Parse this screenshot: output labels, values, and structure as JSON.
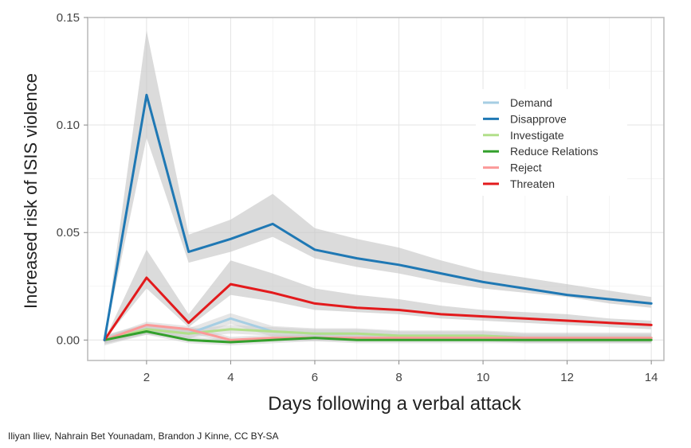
{
  "chart_data": {
    "type": "line",
    "title": "",
    "xlabel": "Days following a verbal attack",
    "ylabel": "Increased risk of ISIS violence",
    "xlim": [
      0.6,
      14.3
    ],
    "ylim": [
      -0.0095,
      0.15
    ],
    "x_ticks": [
      "2",
      "4",
      "6",
      "8",
      "10",
      "12",
      "14"
    ],
    "y_ticks": [
      "0.00",
      "0.05",
      "0.10",
      "0.15"
    ],
    "grid": true,
    "legend_position": "top-right",
    "x": [
      1,
      2,
      3,
      4,
      5,
      6,
      7,
      8,
      9,
      10,
      11,
      12,
      13,
      14
    ],
    "series": [
      {
        "name": "Demand",
        "color": "#a6cee3",
        "values": [
          0,
          0.005,
          0.003,
          0.01,
          0.004,
          0.003,
          0.003,
          0.002,
          0.002,
          0.002,
          0.001,
          0.001,
          0.001,
          0.001
        ],
        "band": 0.0025
      },
      {
        "name": "Disapprove",
        "color": "#1f78b4",
        "values": [
          0,
          0.114,
          0.041,
          0.047,
          0.054,
          0.042,
          0.038,
          0.035,
          0.031,
          0.027,
          0.024,
          0.021,
          0.019,
          0.017
        ],
        "lower": [
          0,
          0.094,
          0.036,
          0.041,
          0.048,
          0.038,
          0.034,
          0.031,
          0.027,
          0.024,
          0.022,
          0.02,
          0.017,
          0.015
        ],
        "upper": [
          0,
          0.144,
          0.049,
          0.056,
          0.068,
          0.052,
          0.047,
          0.043,
          0.037,
          0.032,
          0.029,
          0.026,
          0.023,
          0.02
        ]
      },
      {
        "name": "Investigate",
        "color": "#b2df8a",
        "values": [
          0,
          0.005,
          0.003,
          0.005,
          0.004,
          0.003,
          0.003,
          0.002,
          0.002,
          0.002,
          0.001,
          0.001,
          0.001,
          0.001
        ],
        "band": 0.002
      },
      {
        "name": "Reduce Relations",
        "color": "#33a02c",
        "values": [
          0,
          0.004,
          0.0,
          -0.001,
          0.0,
          0.001,
          0.0,
          0.0,
          0.0,
          0.0,
          0.0,
          0.0,
          0.0,
          0.0
        ],
        "band": 0.0015
      },
      {
        "name": "Reject",
        "color": "#fb9a99",
        "values": [
          0,
          0.007,
          0.005,
          0.0,
          0.001,
          0.001,
          0.001,
          0.001,
          0.001,
          0.001,
          0.001,
          0.001,
          0.001,
          0.001
        ],
        "band": 0.0015
      },
      {
        "name": "Threaten",
        "color": "#e31a1c",
        "values": [
          0,
          0.029,
          0.008,
          0.026,
          0.022,
          0.017,
          0.015,
          0.014,
          0.012,
          0.011,
          0.01,
          0.009,
          0.008,
          0.007
        ],
        "lower": [
          0,
          0.024,
          0.006,
          0.021,
          0.018,
          0.014,
          0.013,
          0.012,
          0.01,
          0.009,
          0.008,
          0.007,
          0.006,
          0.005
        ],
        "upper": [
          0,
          0.042,
          0.012,
          0.037,
          0.031,
          0.024,
          0.021,
          0.019,
          0.016,
          0.014,
          0.013,
          0.012,
          0.01,
          0.009
        ]
      }
    ]
  },
  "credit": "Iliyan Iliev, Nahrain Bet Younadam, Brandon J Kinne, CC BY-SA"
}
